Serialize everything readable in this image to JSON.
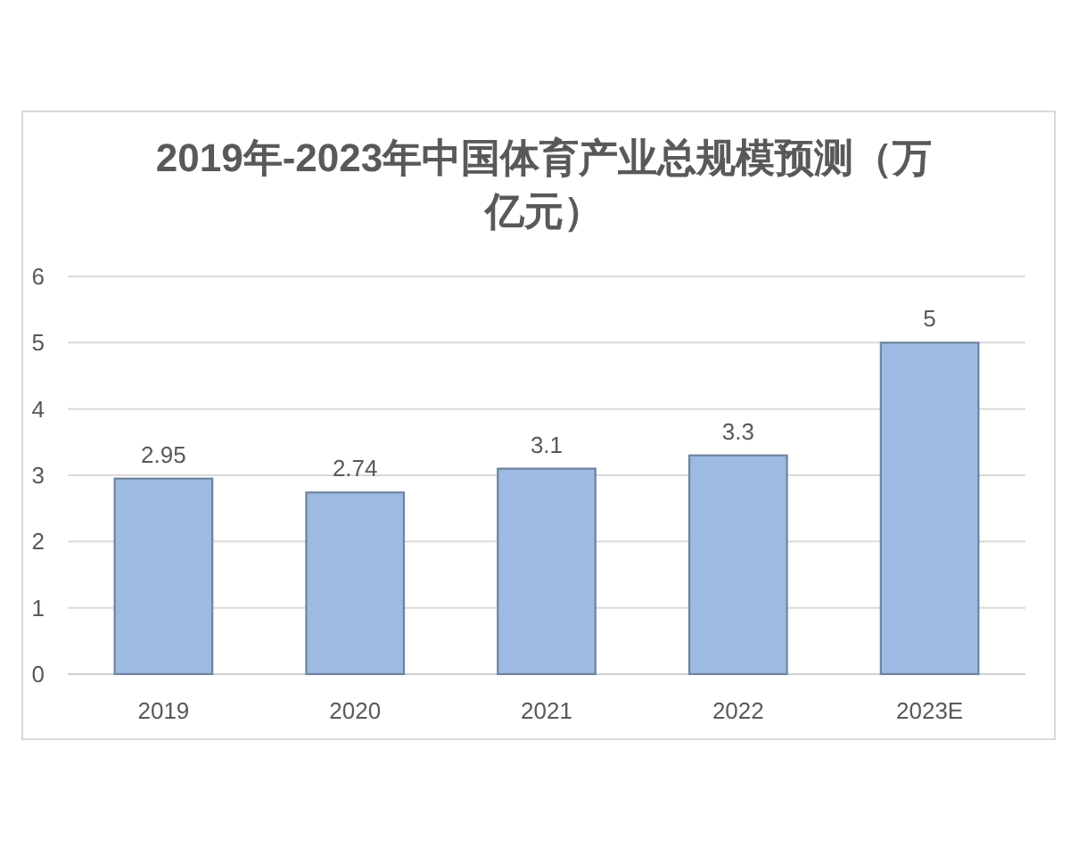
{
  "chart_data": {
    "type": "bar",
    "title": "2019年-2023年中国体育产业总规模预测（万亿元）",
    "categories": [
      "2019",
      "2020",
      "2021",
      "2022",
      "2023E"
    ],
    "values": [
      2.95,
      2.74,
      3.1,
      3.3,
      5
    ],
    "color": "#9dbbe2",
    "ylim": [
      0,
      6
    ],
    "yticks": [
      0,
      1,
      2,
      3,
      4,
      5,
      6
    ],
    "grid": "y",
    "data_labels": true
  }
}
